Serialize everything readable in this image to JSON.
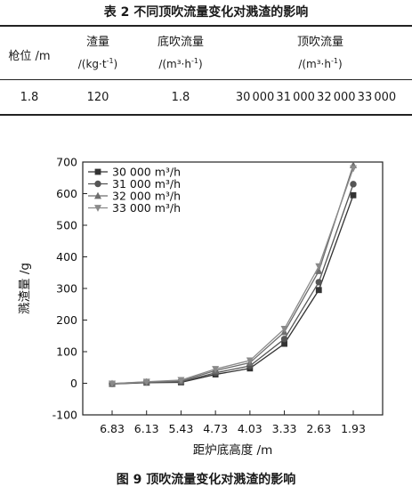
{
  "table": {
    "title": "表 2   不同顶吹流量变化对溅渣的影响",
    "headers": {
      "lance": "枪位 /m",
      "slag": "渣量",
      "slag_unit_pre": "/(kg·t",
      "slag_unit_sup": "-1",
      "slag_unit_post": ")",
      "bottom": "底吹流量",
      "bottom_unit_pre": "/(m³·h",
      "bottom_unit_sup": "-1",
      "bottom_unit_post": ")",
      "top": "顶吹流量",
      "top_unit_pre": "/(m³·h",
      "top_unit_sup": "-1",
      "top_unit_post": ")"
    },
    "row": {
      "lance": "1.8",
      "slag": "120",
      "bottom": "1.8",
      "top": "30 000  31 000  32 000  33 000"
    }
  },
  "figure": {
    "caption": "图 9   顶吹流量变化对溅渣的影响"
  },
  "chart_data": {
    "type": "line",
    "xlabel": "距炉底高度 /m",
    "ylabel": "溅渣量 /g",
    "categories": [
      "6.83",
      "6.13",
      "5.43",
      "4.73",
      "4.03",
      "3.33",
      "2.63",
      "1.93"
    ],
    "ylim": [
      -100,
      700
    ],
    "yticks": [
      "-100",
      "0",
      "100",
      "200",
      "300",
      "400",
      "500",
      "600",
      "700"
    ],
    "legend_position": "top-left",
    "series": [
      {
        "name": "30 000 m³/h",
        "marker": "square",
        "color": "#333333",
        "values": [
          -2,
          2,
          3,
          28,
          47,
          125,
          295,
          595
        ]
      },
      {
        "name": "31 000 m³/h",
        "marker": "circle",
        "color": "#555555",
        "values": [
          -2,
          3,
          5,
          33,
          55,
          140,
          320,
          630
        ]
      },
      {
        "name": "32 000 m³/h",
        "marker": "triangle-up",
        "color": "#6e6e6e",
        "values": [
          -1,
          4,
          7,
          40,
          65,
          162,
          355,
          690
        ]
      },
      {
        "name": "33 000 m³/h",
        "marker": "triangle-down",
        "color": "#8a8a8a",
        "values": [
          -1,
          5,
          10,
          45,
          72,
          172,
          370,
          680
        ]
      }
    ]
  }
}
